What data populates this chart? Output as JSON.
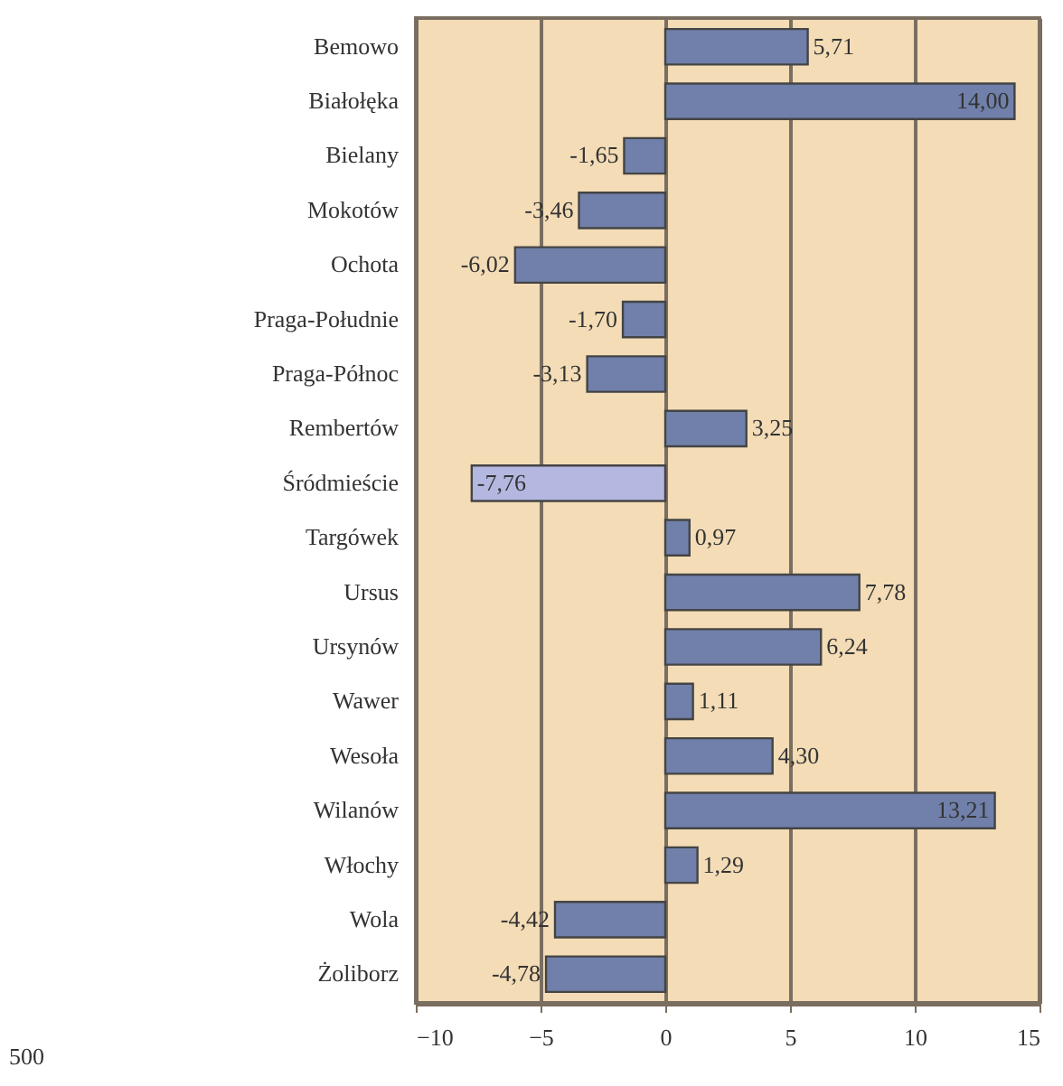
{
  "chart_data": {
    "type": "bar",
    "orientation": "horizontal",
    "categories": [
      "Bemowo",
      "Białołęka",
      "Bielany",
      "Mokotów",
      "Ochota",
      "Praga-Południe",
      "Praga-Północ",
      "Rembertów",
      "Śródmieście",
      "Targówek",
      "Ursus",
      "Ursynów",
      "Wawer",
      "Wesoła",
      "Wilanów",
      "Włochy",
      "Wola",
      "Żoliborz"
    ],
    "values": [
      5.71,
      14.0,
      -1.65,
      -3.46,
      -6.02,
      -1.7,
      -3.13,
      3.25,
      -7.76,
      0.97,
      7.78,
      6.24,
      1.11,
      4.3,
      13.21,
      1.29,
      -4.42,
      -4.78
    ],
    "value_labels": [
      "5,71",
      "14,00",
      "-1,65",
      "-3,46",
      "-6,02",
      "-1,70",
      "-3,13",
      "3,25",
      "-7,76",
      "0,97",
      "7,78",
      "6,24",
      "1,11",
      "4,30",
      "13,21",
      "1,29",
      "-4,42",
      "-4,78"
    ],
    "colors": [
      "#7080aa",
      "#7080aa",
      "#7080aa",
      "#7080aa",
      "#7080aa",
      "#7080aa",
      "#7080aa",
      "#7080aa",
      "#b4b8e0",
      "#7080aa",
      "#7080aa",
      "#7080aa",
      "#7080aa",
      "#7080aa",
      "#7080aa",
      "#7080aa",
      "#7080aa",
      "#7080aa"
    ],
    "xlim": [
      -10,
      15
    ],
    "xticks": [
      -10,
      -5,
      0,
      5,
      10,
      15
    ],
    "grid": "x",
    "annotations": [
      "500"
    ]
  }
}
